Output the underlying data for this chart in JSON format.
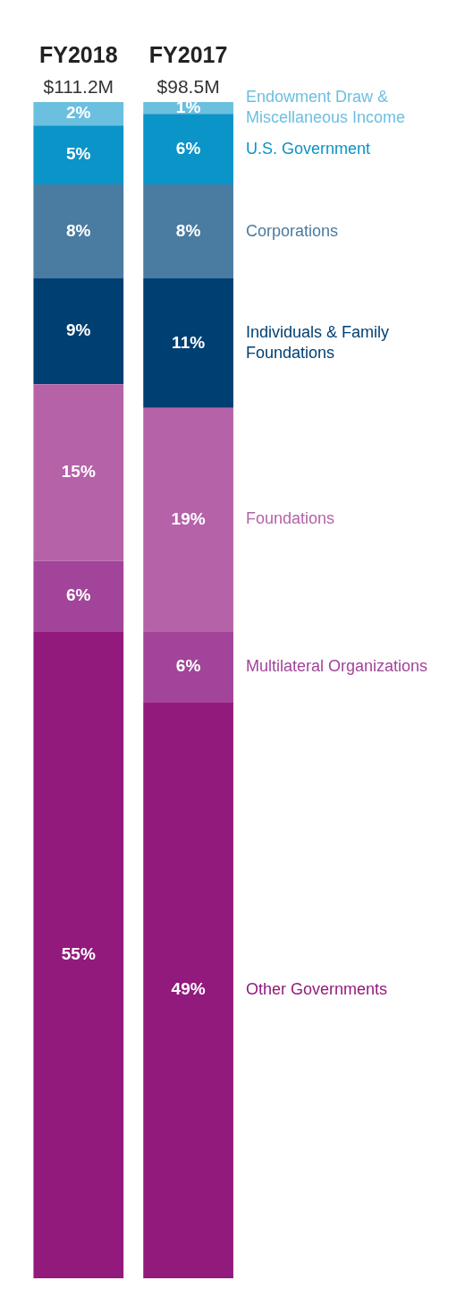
{
  "chart_data": {
    "type": "bar",
    "stacked": true,
    "categories": [
      "FY2018",
      "FY2017"
    ],
    "annotations": [
      "$111.2M",
      "$98.5M"
    ],
    "series": [
      {
        "name": "Other Governments",
        "color": "#921a7d",
        "values": [
          55,
          49
        ],
        "value_labels": [
          "55%",
          "49%"
        ]
      },
      {
        "name": "Multilateral Organizations",
        "color": "#a1449a",
        "values": [
          6,
          6
        ],
        "value_labels": [
          "6%",
          "6%"
        ]
      },
      {
        "name": "Foundations",
        "color": "#b562a8",
        "values": [
          15,
          19
        ],
        "value_labels": [
          "15%",
          "19%"
        ]
      },
      {
        "name": "Individuals & Family Foundations",
        "color": "#003f72",
        "values": [
          9,
          11
        ],
        "value_labels": [
          "9%",
          "11%"
        ]
      },
      {
        "name": "Corporations",
        "color": "#4a7ba1",
        "values": [
          8,
          8
        ],
        "value_labels": [
          "8%",
          "8%"
        ]
      },
      {
        "name": "U.S. Government",
        "color": "#0a94c8",
        "values": [
          5,
          6
        ],
        "value_labels": [
          "5%",
          "6%"
        ]
      },
      {
        "name": "Endowment Draw & Miscellaneous Income",
        "color": "#6bbfdf",
        "values": [
          2,
          1
        ],
        "value_labels": [
          "2%",
          "1%"
        ]
      }
    ]
  }
}
